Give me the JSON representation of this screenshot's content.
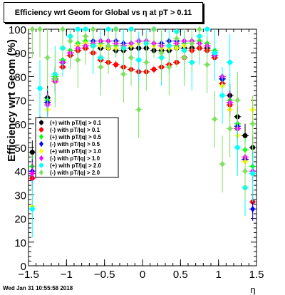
{
  "chart_data": {
    "type": "scatter",
    "title": "Efficiency wrt Geom for Global vs   η at pT > 0.11",
    "xlabel": "η",
    "ylabel": "Efficiency wrt Geom (%)",
    "xlim": [
      -1.5,
      1.5
    ],
    "ylim": [
      0,
      100
    ],
    "x_ticks": [
      "−1.5",
      "−1",
      "−0.5",
      "0",
      "0.5",
      "1",
      "1.5"
    ],
    "y_ticks": [
      "0",
      "10",
      "20",
      "30",
      "40",
      "50",
      "60",
      "70",
      "80",
      "90",
      "100"
    ],
    "legend_position": "left-middle",
    "footer_text": "Wed Jan 31 10:55:58 2018",
    "series": [
      {
        "name": "(+) with pT/|q| > 0.1",
        "color": "#000000",
        "marker": "circle",
        "x": [
          -1.45,
          -1.35,
          -1.25,
          -1.15,
          -1.05,
          -0.95,
          -0.85,
          -0.75,
          -0.65,
          -0.55,
          -0.45,
          -0.35,
          -0.25,
          -0.15,
          -0.05,
          0.05,
          0.15,
          0.25,
          0.35,
          0.45,
          0.55,
          0.65,
          0.75,
          0.85,
          0.95,
          1.05,
          1.15,
          1.25,
          1.35,
          1.45
        ],
        "y": [
          48,
          62,
          71,
          79,
          86,
          89,
          91,
          92,
          93,
          92,
          92,
          91,
          91,
          92,
          92,
          92,
          91,
          91,
          91,
          92,
          92,
          92,
          92,
          92,
          89,
          79,
          72,
          63,
          55,
          50
        ]
      },
      {
        "name": "(-) with pT/|q| > 0.1",
        "color": "#ff0000",
        "marker": "circle",
        "x": [
          -1.45,
          -1.35,
          -1.25,
          -1.15,
          -1.05,
          -0.95,
          -0.85,
          -0.75,
          -0.65,
          -0.55,
          -0.45,
          -0.35,
          -0.25,
          -0.15,
          -0.05,
          0.05,
          0.15,
          0.25,
          0.35,
          0.45,
          0.55,
          0.65,
          0.75,
          0.85,
          0.95,
          1.05,
          1.15,
          1.25,
          1.35,
          1.45
        ],
        "y": [
          37,
          56,
          69,
          78,
          84,
          89,
          91,
          92,
          90,
          87,
          86,
          85,
          84,
          83,
          82,
          82,
          83,
          84,
          85,
          86,
          88,
          91,
          92,
          91,
          88,
          77,
          68,
          58,
          45,
          27
        ]
      },
      {
        "name": "(+) with pT/|q| > 0.5",
        "color": "#00ff00",
        "marker": "diamond",
        "x": [
          -1.45,
          -1.35,
          -1.25,
          -1.15,
          -1.05,
          -0.95,
          -0.85,
          -0.75,
          -0.65,
          -0.55,
          -0.45,
          -0.35,
          -0.25,
          -0.15,
          -0.05,
          0.05,
          0.15,
          0.25,
          0.35,
          0.45,
          0.55,
          0.65,
          0.75,
          0.85,
          0.95,
          1.05,
          1.15,
          1.25,
          1.35,
          1.45
        ],
        "y": [
          42,
          58,
          70,
          80,
          87,
          91,
          94,
          95,
          95,
          94,
          93,
          93,
          93,
          94,
          95,
          95,
          94,
          93,
          93,
          93,
          94,
          95,
          95,
          94,
          91,
          80,
          70,
          60,
          49,
          42
        ]
      },
      {
        "name": "(-) with pT/|q| > 0.5",
        "color": "#0000ff",
        "marker": "diamond",
        "x": [
          -1.45,
          -1.35,
          -1.25,
          -1.15,
          -1.05,
          -0.95,
          -0.85,
          -0.75,
          -0.65,
          -0.55,
          -0.45,
          -0.35,
          -0.25,
          -0.15,
          -0.05,
          0.05,
          0.15,
          0.25,
          0.35,
          0.45,
          0.55,
          0.65,
          0.75,
          0.85,
          0.95,
          1.05,
          1.15,
          1.25,
          1.35,
          1.45
        ],
        "y": [
          40,
          57,
          69,
          79,
          86,
          90,
          93,
          94,
          95,
          95,
          95,
          95,
          94,
          94,
          95,
          95,
          94,
          94,
          95,
          95,
          95,
          95,
          94,
          93,
          90,
          79,
          69,
          59,
          45,
          24
        ]
      },
      {
        "name": "(+) with pT/|q| > 1.0",
        "color": "#ffff00",
        "marker": "diamond",
        "x": [
          -1.45,
          -1.35,
          -1.25,
          -1.15,
          -1.05,
          -0.95,
          -0.85,
          -0.75,
          -0.65,
          -0.55,
          -0.45,
          -0.35,
          -0.25,
          -0.15,
          -0.05,
          0.05,
          0.15,
          0.25,
          0.35,
          0.45,
          0.55,
          0.65,
          0.75,
          0.85,
          0.95,
          1.05,
          1.15,
          1.25,
          1.35,
          1.45
        ],
        "y": [
          25,
          52,
          66,
          78,
          86,
          90,
          93,
          94,
          94,
          93,
          92,
          92,
          92,
          93,
          94,
          94,
          93,
          92,
          92,
          92,
          93,
          94,
          94,
          93,
          89,
          76,
          66,
          55,
          44,
          66
        ]
      },
      {
        "name": "(-) with pT/|q| > 1.0",
        "color": "#ff00ff",
        "marker": "diamond",
        "x": [
          -1.45,
          -1.35,
          -1.25,
          -1.15,
          -1.05,
          -0.95,
          -0.85,
          -0.75,
          -0.65,
          -0.55,
          -0.45,
          -0.35,
          -0.25,
          -0.15,
          -0.05,
          0.05,
          0.15,
          0.25,
          0.35,
          0.45,
          0.55,
          0.65,
          0.75,
          0.85,
          0.95,
          1.05,
          1.15,
          1.25,
          1.35,
          1.45
        ],
        "y": [
          39,
          55,
          68,
          78,
          86,
          90,
          92,
          93,
          94,
          95,
          95,
          94,
          93,
          94,
          95,
          95,
          94,
          93,
          93,
          94,
          95,
          95,
          94,
          93,
          89,
          80,
          69,
          58,
          46,
          40
        ]
      },
      {
        "name": "(+) with pT/|q| > 2.0",
        "color": "#00ffff",
        "marker": "circle",
        "x": [
          -1.45,
          -1.35,
          -1.25,
          -1.15,
          -1.05,
          -0.95,
          -0.85,
          -0.75,
          -0.65,
          -0.55,
          -0.45,
          -0.35,
          -0.25,
          -0.15,
          -0.05,
          0.05,
          0.15,
          0.25,
          0.35,
          0.45,
          0.55,
          0.65,
          0.75,
          0.85,
          0.95,
          1.05,
          1.15,
          1.25,
          1.35,
          1.45
        ],
        "y": [
          24,
          75,
          60,
          81,
          92,
          97,
          100,
          100,
          93,
          88,
          100,
          100,
          92,
          100,
          87,
          94,
          100,
          88,
          93,
          99,
          91,
          86,
          97,
          100,
          90,
          72,
          86,
          50,
          33,
          39
        ]
      },
      {
        "name": "(-) with pT/|q| > 2.0",
        "color": "#7fdf5f",
        "marker": "diamond",
        "x": [
          -1.45,
          -1.35,
          -1.25,
          -1.15,
          -1.05,
          -0.95,
          -0.85,
          -0.75,
          -0.65,
          -0.55,
          -0.45,
          -0.35,
          -0.25,
          -0.15,
          -0.05,
          0.05,
          0.15,
          0.25,
          0.35,
          0.45,
          0.55,
          0.65,
          0.75,
          0.85,
          0.95,
          1.05,
          1.15,
          1.25,
          1.35,
          1.45
        ],
        "y": [
          100,
          100,
          88,
          79,
          100,
          95,
          87,
          97,
          100,
          84,
          93,
          100,
          81,
          88,
          66,
          86,
          100,
          90,
          84,
          96,
          88,
          94,
          100,
          85,
          62,
          43,
          58,
          70,
          40,
          60
        ]
      }
    ]
  }
}
